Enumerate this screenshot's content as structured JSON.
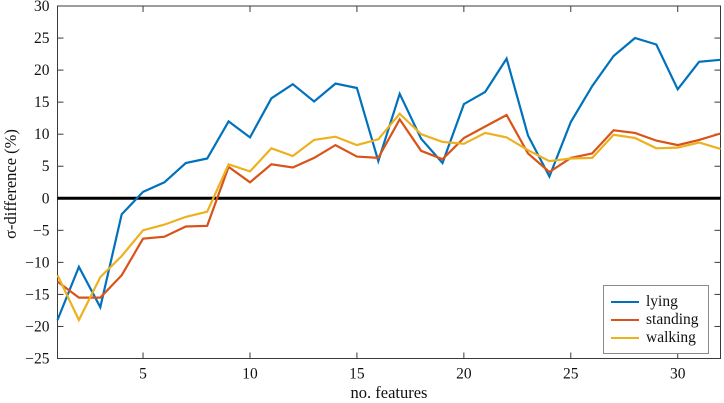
{
  "figure": {
    "background": "#ffffff"
  },
  "chart_data": {
    "type": "line",
    "title": "",
    "xlabel": "no. features",
    "ylabel": "σ-difference (%)",
    "xlim": [
      1,
      32
    ],
    "ylim": [
      -25,
      30
    ],
    "xticks": [
      5,
      10,
      15,
      20,
      25,
      30
    ],
    "yticks": [
      -25,
      -20,
      -15,
      -10,
      -5,
      0,
      5,
      10,
      15,
      20,
      25,
      30
    ],
    "grid": false,
    "zero_line_y": 0,
    "zero_line_color": "#000000",
    "frame_color": "#3a3a3a",
    "legend_position": "bottom-right",
    "x": [
      1,
      2,
      3,
      4,
      5,
      6,
      7,
      8,
      9,
      10,
      11,
      12,
      13,
      14,
      15,
      16,
      17,
      18,
      19,
      20,
      21,
      22,
      23,
      24,
      25,
      26,
      27,
      28,
      29,
      30,
      31,
      32
    ],
    "series": [
      {
        "name": "lying",
        "color": "#0072BD",
        "values": [
          -19,
          -10.7,
          -17,
          -2.5,
          1,
          2.5,
          5.5,
          6.2,
          12,
          9.5,
          15.6,
          17.8,
          15.1,
          17.9,
          17.2,
          5.8,
          16.3,
          9.3,
          5.5,
          14.7,
          16.6,
          21.8,
          9.8,
          3.4,
          11.9,
          17.5,
          22.2,
          25,
          24,
          17,
          21.3,
          21.6
        ]
      },
      {
        "name": "standing",
        "color": "#D95319",
        "values": [
          -13,
          -15.5,
          -15.5,
          -12,
          -6.3,
          -6,
          -4.4,
          -4.3,
          4.9,
          2.5,
          5.3,
          4.8,
          6.3,
          8.3,
          6.5,
          6.3,
          12.3,
          7.4,
          6.1,
          9.4,
          11.2,
          13,
          7,
          4.1,
          6.3,
          7,
          10.6,
          10.2,
          9,
          8.3,
          9.1,
          10.1
        ]
      },
      {
        "name": "walking",
        "color": "#EDB120",
        "values": [
          -12,
          -19,
          -12.3,
          -9,
          -5,
          -4.1,
          -2.9,
          -2.1,
          5.3,
          4.2,
          7.8,
          6.6,
          9.1,
          9.6,
          8.3,
          9.2,
          13.2,
          10,
          8.8,
          8.5,
          10.2,
          9.5,
          7.5,
          5.8,
          6.2,
          6.3,
          9.9,
          9.4,
          7.8,
          7.9,
          8.7,
          7.7
        ]
      }
    ]
  }
}
